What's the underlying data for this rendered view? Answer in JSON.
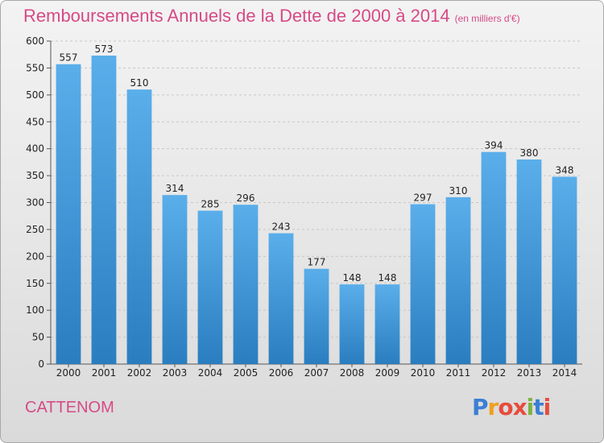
{
  "chart_data": {
    "type": "bar",
    "title": "Remboursements Annuels de la Dette de 2000 à 2014",
    "subtitle": "(en milliers d'€)",
    "categories": [
      "2000",
      "2001",
      "2002",
      "2003",
      "2004",
      "2005",
      "2006",
      "2007",
      "2008",
      "2009",
      "2010",
      "2011",
      "2012",
      "2013",
      "2014"
    ],
    "values": [
      557,
      573,
      510,
      314,
      285,
      296,
      243,
      177,
      148,
      148,
      297,
      310,
      394,
      380,
      348
    ],
    "ylim": [
      0,
      600
    ],
    "yticks": [
      0,
      50,
      100,
      150,
      200,
      250,
      300,
      350,
      400,
      450,
      500,
      550,
      600
    ],
    "grid": true,
    "bar_color_top": "#5aaeea",
    "bar_color_bottom": "#2a7ec0"
  },
  "footer": {
    "city": "CATTENOM",
    "logo": {
      "letters": [
        "P",
        "r",
        "o",
        "x",
        "i",
        "t",
        "i"
      ],
      "colors": [
        "#3b7fd4",
        "#f0a020",
        "#e74c3c",
        "#e74c3c",
        "#7cb342",
        "#3b7fd4",
        "#e74c3c"
      ]
    }
  }
}
